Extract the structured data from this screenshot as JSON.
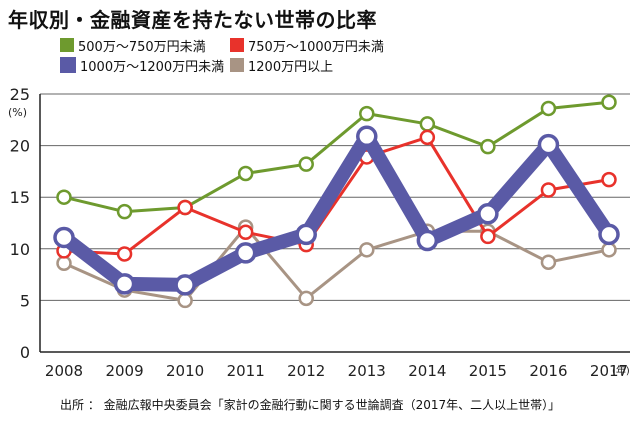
{
  "title": "年収別・金融資産を持たない世帯の比率",
  "source": "出所 ： 金融広報中央委員会「家計の金融行動に関する世論調査（2017年、二人以上世帯）」",
  "colors": {
    "green": "#6e9a2e",
    "red": "#e8322b",
    "blue": "#5a5aa6",
    "gray": "#a89484",
    "axis": "#222222",
    "grid": "#666666"
  },
  "chart_data": {
    "type": "line",
    "title": "年収別・金融資産を持たない世帯の比率",
    "xlabel": "",
    "ylabel": "",
    "y_unit": "(%)",
    "x_unit": "(年)",
    "categories": [
      "2008",
      "2009",
      "2010",
      "2011",
      "2012",
      "2013",
      "2014",
      "2015",
      "2016",
      "2017"
    ],
    "ylim": [
      0,
      25
    ],
    "yticks": [
      "0",
      "5",
      "10",
      "15",
      "20",
      "25"
    ],
    "grid": true,
    "legend_position": "top-left",
    "series": [
      {
        "name": "500万～750万円未満",
        "color": "green",
        "width": "thin",
        "values": [
          15.0,
          13.6,
          14.0,
          17.3,
          18.2,
          23.1,
          22.1,
          19.9,
          23.6,
          24.2
        ]
      },
      {
        "name": "750万～1000万円未満",
        "color": "red",
        "width": "thin",
        "values": [
          9.8,
          9.5,
          14.0,
          11.6,
          10.4,
          18.9,
          20.8,
          11.2,
          15.7,
          16.7
        ]
      },
      {
        "name": "1000万～1200万円未満",
        "color": "blue",
        "width": "thick",
        "values": [
          11.1,
          6.6,
          6.5,
          9.6,
          11.4,
          20.9,
          10.8,
          13.4,
          20.1,
          11.4
        ]
      },
      {
        "name": "1200万円以上",
        "color": "gray",
        "width": "thin",
        "values": [
          8.6,
          6.0,
          5.0,
          12.1,
          5.2,
          9.9,
          11.7,
          11.7,
          8.7,
          9.9
        ]
      }
    ]
  }
}
